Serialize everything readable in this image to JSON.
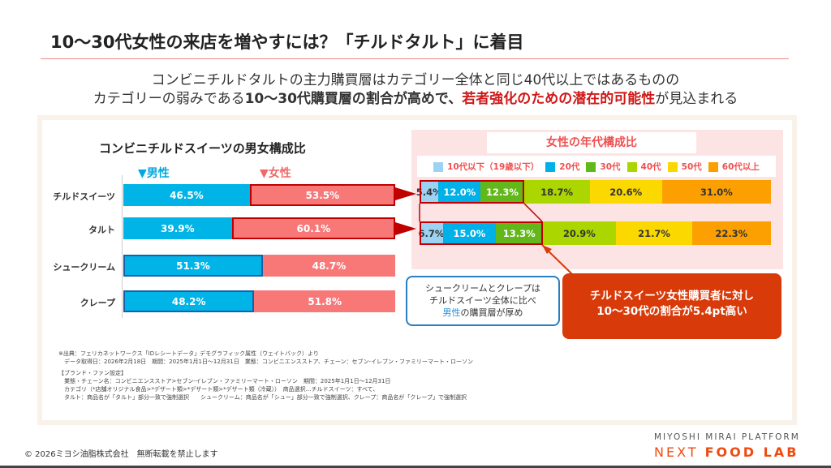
{
  "title": "10〜30代女性の来店を増やすには？「チルドタルト」に着目",
  "subtitle": {
    "line1": "コンビニチルドタルトの主力購買層はカテゴリー全体と同じ40代以上ではあるものの",
    "line2_a": "カテゴリーの弱みである",
    "line2_b": "10〜30代購買層の割合が高めで、",
    "line2_c": "若者強化のための潜在的可能性",
    "line2_d": "が見込まれる"
  },
  "chart_data": [
    {
      "type": "bar",
      "stacked": true,
      "orientation": "horizontal",
      "title": "コンビニチルドスイーツの男女構成比",
      "categories": [
        "チルドスイーツ",
        "タルト",
        "シュークリーム",
        "クレープ"
      ],
      "series": [
        {
          "name": "▼男性",
          "values": [
            46.5,
            39.9,
            51.3,
            48.2
          ],
          "labels": [
            "46.5%",
            "39.9%",
            "51.3%",
            "48.2%"
          ],
          "color": "#00b4e8"
        },
        {
          "name": "▼女性",
          "values": [
            53.5,
            60.1,
            48.7,
            51.8
          ],
          "labels": [
            "53.5%",
            "60.1%",
            "48.7%",
            "51.8%"
          ],
          "color": "#f87878"
        }
      ],
      "highlighted": [
        "female-0",
        "female-1",
        "male-2",
        "male-3"
      ],
      "xlim": [
        0,
        100
      ]
    },
    {
      "type": "bar",
      "stacked": true,
      "orientation": "horizontal",
      "title": "女性の年代構成比",
      "categories": [
        "チルドスイーツ",
        "タルト"
      ],
      "legend_position": "top",
      "series": [
        {
          "name": "10代以下（19歳以下）",
          "values": [
            5.4,
            6.7
          ],
          "labels": [
            "5.4%",
            "6.7%"
          ],
          "color": "#9dd3f2"
        },
        {
          "name": "20代",
          "values": [
            12.0,
            15.0
          ],
          "labels": [
            "12.0%",
            "15.0%"
          ],
          "color": "#00b0e8"
        },
        {
          "name": "30代",
          "values": [
            12.3,
            13.3
          ],
          "labels": [
            "12.3%",
            "13.3%"
          ],
          "color": "#62b81a"
        },
        {
          "name": "40代",
          "values": [
            18.7,
            20.9
          ],
          "labels": [
            "18.7%",
            "20.9%"
          ],
          "color": "#acd600"
        },
        {
          "name": "50代",
          "values": [
            20.6,
            21.7
          ],
          "labels": [
            "20.6%",
            "21.7%"
          ],
          "color": "#fad800"
        },
        {
          "name": "60代以上",
          "values": [
            31.0,
            22.3
          ],
          "labels": [
            "31.0%",
            "22.3%"
          ],
          "color": "#fba000"
        }
      ],
      "xlim": [
        0,
        100
      ]
    }
  ],
  "note_blue": {
    "l1": "シュークリームとクレープは",
    "l2": "チルドスイーツ全体に比べ",
    "l3a": "男性",
    "l3b": "の購買層が厚め"
  },
  "note_red": {
    "l1": "チルドスイーツ女性購買者に対し",
    "l2": "10〜30代の割合が5.4pt高い"
  },
  "source": [
    "※出典：フェリカネットワークス「IDレシートデータ」デモグラフィック属性（ウェイトバック）より",
    "　データ取得日：2026年2月18日　期間：2025年1月1日〜12月31日　業態：コンビニエンスストア、チェーン：セブン-イレブン・ファミリーマート・ローソン",
    "【ブランド・ファン設定】",
    "　業態・チェーン名：コンビニエンスストア>セブン-イレブン・ファミリーマート・ローソン　期間：2025年1月1日〜12月31日",
    "　カテゴリ（*店舗オリジナル食品>*デザート類>*デザート類>*デザート類（冷蔵））　商品選択…チルドスイーツ：すべて、",
    "　タルト：商品名が「タルト」部分一致で強制選択　　シュークリーム：商品名が「シュー」部分一致で強制選択、クレープ：商品名が「クレープ」で強制選択"
  ],
  "footer": {
    "copyright": "© 2026ミヨシ油脂株式会社　無断転載を禁止します",
    "logo_top": "MIYOSHI MIRAI PLATFORM",
    "logo_a": "NEXT ",
    "logo_b": "FOOD LAB"
  },
  "colors": {
    "accent": "#d83a0a",
    "highlight_border_female": "#c00000",
    "highlight_border_male": "#1a5fa8"
  }
}
